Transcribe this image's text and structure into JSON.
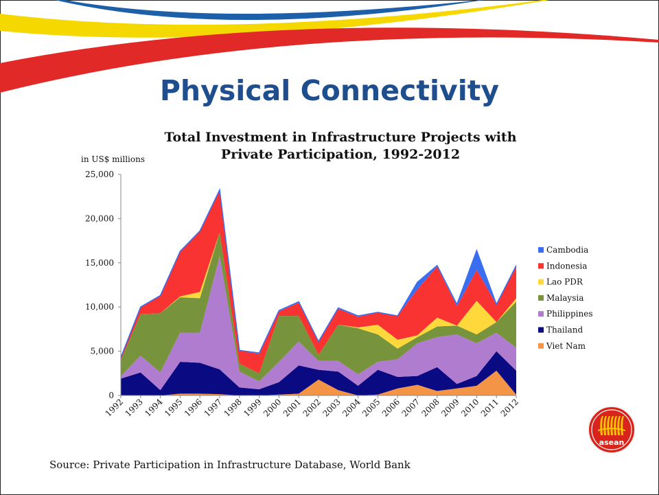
{
  "slide": {
    "title": "Physical Connectivity",
    "source": "Source: Private Participation in Infrastructure Database, World Bank",
    "logo_text": "asean"
  },
  "colors": {
    "title": "#1f4e8f",
    "swoosh_blue": "#1d5fa8",
    "swoosh_yellow": "#f5d800",
    "swoosh_red": "#e12a27",
    "logo_red": "#d9241b",
    "logo_yellow": "#f7c600"
  },
  "chart_data": {
    "type": "area",
    "stacked": true,
    "title_lines": [
      "Total Investment in Infrastructure Projects with",
      "Private Participation, 1992-2012"
    ],
    "unit_label": "in US$ millions",
    "ylim": [
      0,
      25000
    ],
    "y_ticks": [
      "0",
      "5,000",
      "10,000",
      "15,000",
      "20,000",
      "25,000"
    ],
    "legend_position": "right",
    "categories": [
      "1992",
      "1993",
      "1994",
      "1995",
      "1996",
      "1997",
      "1998",
      "1999",
      "2000",
      "2001",
      "2002",
      "2003",
      "2004",
      "2005",
      "2006",
      "2007",
      "2008",
      "2009",
      "2010",
      "2011",
      "2012"
    ],
    "series": [
      {
        "name": "Viet Nam",
        "color": "#f39447",
        "values": [
          0,
          0,
          0,
          200,
          200,
          150,
          0,
          0,
          100,
          200,
          1800,
          600,
          0,
          100,
          800,
          1200,
          500,
          800,
          1100,
          2800,
          100
        ]
      },
      {
        "name": "Thailand",
        "color": "#0a0a82",
        "values": [
          1900,
          2600,
          600,
          3600,
          3500,
          2800,
          900,
          700,
          1400,
          3200,
          1100,
          2100,
          1100,
          2800,
          1300,
          1000,
          2700,
          500,
          1100,
          2200,
          2700
        ]
      },
      {
        "name": "Philippines",
        "color": "#b07ccf",
        "values": [
          300,
          1900,
          2000,
          3300,
          3400,
          12800,
          1800,
          900,
          2300,
          2700,
          1000,
          1200,
          1300,
          900,
          2000,
          3700,
          3400,
          5600,
          3700,
          2100,
          2600
        ]
      },
      {
        "name": "Malaysia",
        "color": "#77933c",
        "values": [
          1800,
          4700,
          6700,
          4000,
          3900,
          2700,
          900,
          900,
          5200,
          2900,
          700,
          4100,
          5200,
          3100,
          1200,
          700,
          1200,
          1000,
          1000,
          1200,
          5200
        ]
      },
      {
        "name": "Lao PDR",
        "color": "#ffd93b",
        "values": [
          0,
          0,
          0,
          100,
          700,
          0,
          0,
          0,
          0,
          0,
          0,
          0,
          100,
          1100,
          1000,
          200,
          1000,
          0,
          3800,
          0,
          400
        ]
      },
      {
        "name": "Indonesia",
        "color": "#f93232",
        "values": [
          300,
          800,
          2000,
          5100,
          6900,
          4800,
          1500,
          2200,
          500,
          1500,
          1500,
          1800,
          1200,
          1400,
          2700,
          5200,
          5800,
          2200,
          3500,
          2000,
          3700
        ]
      },
      {
        "name": "Cambodia",
        "color": "#3a6ef0",
        "values": [
          0,
          0,
          0,
          0,
          0,
          0,
          0,
          100,
          100,
          100,
          0,
          100,
          100,
          0,
          0,
          800,
          100,
          200,
          2200,
          0,
          0
        ]
      }
    ]
  }
}
